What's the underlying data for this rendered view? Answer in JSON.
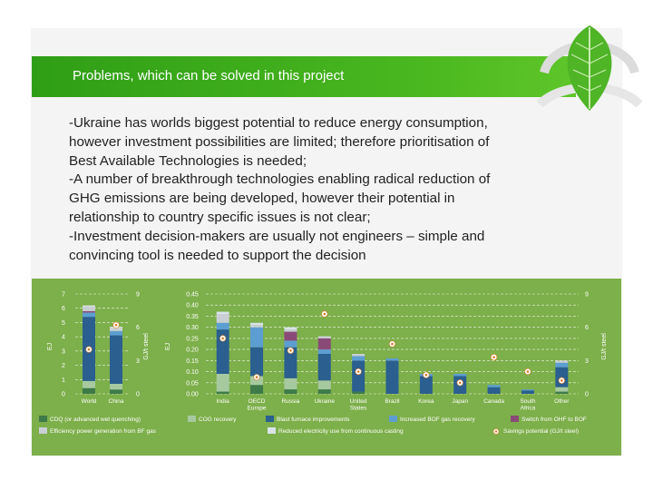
{
  "slide": {
    "title": "Problems, which can be solved in this project",
    "body_lines": [
      "-Ukraine has worlds biggest potential to reduce energy consumption,",
      "however investment possibilities are limited; therefore prioritisation of",
      "Best Available Technologies is needed;",
      "-A number of breakthrough technologies enabling radical reduction of",
      "GHG emissions are being developed, however their potential in",
      "relationship to country specific issues is not clear;",
      "-Investment decision-makers are usually not engineers – simple and",
      "convincing tool is needed to support the decision"
    ]
  },
  "colors": {
    "banner": "#3fae1c",
    "panel": "#7daf4a",
    "cdq": "#3e7a4a",
    "cog": "#a6c9a0",
    "blast": "#2a5f8f",
    "bof": "#5d9ed2",
    "ohf": "#8a4a77",
    "power": "#c9cfd4",
    "casting": "#d9e3e8",
    "marker": "#ffffff",
    "marker_dot": "#e07b23"
  },
  "chart_data": [
    {
      "type": "bar",
      "stacked": true,
      "categories": [
        "World",
        "China"
      ],
      "left_axis": {
        "label": "EJ",
        "range": [
          0,
          7
        ],
        "ticks": [
          "0",
          "1",
          "2",
          "3",
          "4",
          "5",
          "6",
          "7"
        ]
      },
      "right_axis": {
        "label": "GJ/t steel",
        "range": [
          0,
          9
        ],
        "ticks": [
          "0",
          "3",
          "6",
          "9"
        ]
      },
      "series": [
        {
          "name": "CDQ (or advanced wet quenching)",
          "color_key": "cdq",
          "values": [
            0.4,
            0.3
          ]
        },
        {
          "name": "COG recovery",
          "color_key": "cog",
          "values": [
            0.5,
            0.4
          ]
        },
        {
          "name": "Blast furnace improvements",
          "color_key": "blast",
          "values": [
            4.5,
            3.4
          ]
        },
        {
          "name": "Increased BOF gas recovery",
          "color_key": "bof",
          "values": [
            0.3,
            0.3
          ]
        },
        {
          "name": "Switch from OHF to BOF",
          "color_key": "ohf",
          "values": [
            0.1,
            0.0
          ]
        },
        {
          "name": "Efficiency power generation from BF gas",
          "color_key": "power",
          "values": [
            0.3,
            0.2
          ]
        },
        {
          "name": "Reduced electricity use from continuous casting",
          "color_key": "casting",
          "values": [
            0.1,
            0.1
          ]
        }
      ],
      "savings_potential": {
        "name": "Savings potential (GJ/t steel)",
        "values": [
          4.0,
          6.2
        ]
      }
    },
    {
      "type": "bar",
      "stacked": true,
      "categories": [
        "India",
        "OECD Europe",
        "Russia",
        "Ukraine",
        "United States",
        "Brazil",
        "Korea",
        "Japan",
        "Canada",
        "South Africa",
        "Other"
      ],
      "left_axis": {
        "label": "EJ",
        "range": [
          0,
          0.45
        ],
        "ticks": [
          "0.00",
          "0.05",
          "0.10",
          "0.15",
          "0.20",
          "0.25",
          "0.30",
          "0.35",
          "0.40",
          "0.45"
        ]
      },
      "right_axis": {
        "label": "GJ/t steel",
        "range": [
          0,
          9
        ],
        "ticks": [
          "0",
          "3",
          "6",
          "9"
        ]
      },
      "series": [
        {
          "name": "CDQ (or advanced wet quenching)",
          "color_key": "cdq",
          "values": [
            0.01,
            0.04,
            0.02,
            0.02,
            0.01,
            0.0,
            0.0,
            0.0,
            0.0,
            0.0,
            0.01
          ]
        },
        {
          "name": "COG recovery",
          "color_key": "cog",
          "values": [
            0.08,
            0.04,
            0.05,
            0.04,
            0.0,
            0.0,
            0.0,
            0.0,
            0.0,
            0.0,
            0.02
          ]
        },
        {
          "name": "Blast furnace improvements",
          "color_key": "blast",
          "values": [
            0.2,
            0.13,
            0.14,
            0.12,
            0.14,
            0.15,
            0.08,
            0.08,
            0.03,
            0.015,
            0.09
          ]
        },
        {
          "name": "Increased BOF gas recovery",
          "color_key": "bof",
          "values": [
            0.03,
            0.09,
            0.03,
            0.02,
            0.02,
            0.01,
            0.01,
            0.01,
            0.01,
            0.005,
            0.02
          ]
        },
        {
          "name": "Switch from OHF to BOF",
          "color_key": "ohf",
          "values": [
            0.0,
            0.0,
            0.04,
            0.05,
            0.0,
            0.0,
            0.0,
            0.0,
            0.0,
            0.0,
            0.0
          ]
        },
        {
          "name": "Efficiency power generation from BF gas",
          "color_key": "power",
          "values": [
            0.04,
            0.01,
            0.01,
            0.01,
            0.01,
            0.0,
            0.0,
            0.0,
            0.0,
            0.0,
            0.01
          ]
        },
        {
          "name": "Reduced electricity use from continuous casting",
          "color_key": "casting",
          "values": [
            0.01,
            0.01,
            0.01,
            0.0,
            0.0,
            0.0,
            0.0,
            0.0,
            0.0,
            0.0,
            0.0
          ]
        }
      ],
      "savings_potential": {
        "name": "Savings potential (GJ/t steel)",
        "values": [
          5.0,
          1.5,
          3.9,
          7.2,
          2.0,
          4.5,
          1.7,
          1.0,
          3.3,
          2.0,
          1.2
        ]
      }
    }
  ],
  "legend": [
    {
      "label": "CDQ (or advanced wet quenching)",
      "color_key": "cdq",
      "marker": "square"
    },
    {
      "label": "COG recovery",
      "color_key": "cog",
      "marker": "square"
    },
    {
      "label": "Blast furnace improvements",
      "color_key": "blast",
      "marker": "square"
    },
    {
      "label": "Increased BOF gas recovery",
      "color_key": "bof",
      "marker": "square"
    },
    {
      "label": "Switch from OHF to BOF",
      "color_key": "ohf",
      "marker": "square"
    },
    {
      "label": "Efficiency power generation from BF gas",
      "color_key": "power",
      "marker": "square"
    },
    {
      "label": "Reduced electricity use from continuous casting",
      "color_key": "casting",
      "marker": "square"
    },
    {
      "label": "Savings potential (GJ/t steel)",
      "color_key": "marker",
      "marker": "circle"
    }
  ],
  "category_display": [
    {
      "label": "World"
    },
    {
      "label": "China"
    },
    {
      "label": "India"
    },
    {
      "label": "OECD Europe"
    },
    {
      "label": "Russia"
    },
    {
      "label": "Ukraine"
    },
    {
      "label": "United States"
    },
    {
      "label": "Brazil"
    },
    {
      "label": "Korea"
    },
    {
      "label": "Japan"
    },
    {
      "label": "Canada"
    },
    {
      "label": "South Africa"
    },
    {
      "label": "Other"
    }
  ]
}
